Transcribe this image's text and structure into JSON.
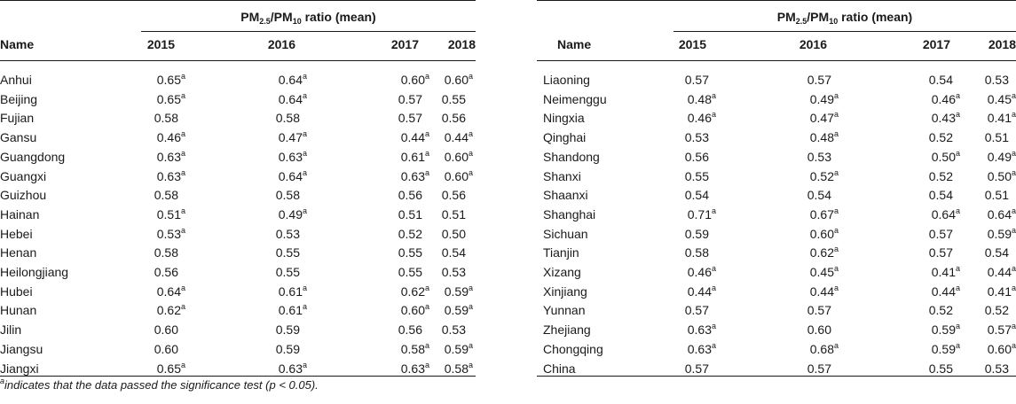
{
  "header_group": "PM2.5/PM10 ratio (mean)",
  "header_parts": {
    "pm25": "PM",
    "sub25": "2.5",
    "slash": "/",
    "pm10": "PM",
    "sub10": "10",
    "rest": " ratio (mean)"
  },
  "columns": [
    "Name",
    "2015",
    "2016",
    "2017",
    "2018"
  ],
  "significance_mark": "a",
  "left_rows": [
    {
      "name": "Anhui",
      "values": [
        "0.65",
        "0.64",
        "0.60",
        "0.60"
      ],
      "sig": [
        true,
        true,
        true,
        true
      ]
    },
    {
      "name": "Beijing",
      "values": [
        "0.65",
        "0.64",
        "0.57",
        "0.55"
      ],
      "sig": [
        true,
        true,
        false,
        false
      ]
    },
    {
      "name": "Fujian",
      "values": [
        "0.58",
        "0.58",
        "0.57",
        "0.56"
      ],
      "sig": [
        false,
        false,
        false,
        false
      ]
    },
    {
      "name": "Gansu",
      "values": [
        "0.46",
        "0.47",
        "0.44",
        "0.44"
      ],
      "sig": [
        true,
        true,
        true,
        true
      ]
    },
    {
      "name": "Guangdong",
      "values": [
        "0.63",
        "0.63",
        "0.61",
        "0.60"
      ],
      "sig": [
        true,
        true,
        true,
        true
      ]
    },
    {
      "name": "Guangxi",
      "values": [
        "0.63",
        "0.64",
        "0.63",
        "0.60"
      ],
      "sig": [
        true,
        true,
        true,
        true
      ]
    },
    {
      "name": "Guizhou",
      "values": [
        "0.58",
        "0.58",
        "0.56",
        "0.56"
      ],
      "sig": [
        false,
        false,
        false,
        false
      ]
    },
    {
      "name": "Hainan",
      "values": [
        "0.51",
        "0.49",
        "0.51",
        "0.51"
      ],
      "sig": [
        true,
        true,
        false,
        false
      ]
    },
    {
      "name": "Hebei",
      "values": [
        "0.53",
        "0.53",
        "0.52",
        "0.50"
      ],
      "sig": [
        true,
        false,
        false,
        false
      ]
    },
    {
      "name": "Henan",
      "values": [
        "0.58",
        "0.55",
        "0.55",
        "0.54"
      ],
      "sig": [
        false,
        false,
        false,
        false
      ]
    },
    {
      "name": "Heilongjiang",
      "values": [
        "0.56",
        "0.55",
        "0.55",
        "0.53"
      ],
      "sig": [
        false,
        false,
        false,
        false
      ]
    },
    {
      "name": "Hubei",
      "values": [
        "0.64",
        "0.61",
        "0.62",
        "0.59"
      ],
      "sig": [
        true,
        true,
        true,
        true
      ]
    },
    {
      "name": "Hunan",
      "values": [
        "0.62",
        "0.61",
        "0.60",
        "0.59"
      ],
      "sig": [
        true,
        true,
        true,
        true
      ]
    },
    {
      "name": "Jilin",
      "values": [
        "0.60",
        "0.59",
        "0.56",
        "0.53"
      ],
      "sig": [
        false,
        false,
        false,
        false
      ]
    },
    {
      "name": "Jiangsu",
      "values": [
        "0.60",
        "0.59",
        "0.58",
        "0.59"
      ],
      "sig": [
        false,
        false,
        true,
        true
      ]
    },
    {
      "name": "Jiangxi",
      "values": [
        "0.65",
        "0.63",
        "0.63",
        "0.58"
      ],
      "sig": [
        true,
        true,
        true,
        true
      ]
    }
  ],
  "right_rows": [
    {
      "name": "Liaoning",
      "values": [
        "0.57",
        "0.57",
        "0.54",
        "0.53"
      ],
      "sig": [
        false,
        false,
        false,
        false
      ]
    },
    {
      "name": "Neimenggu",
      "values": [
        "0.48",
        "0.49",
        "0.46",
        "0.45"
      ],
      "sig": [
        true,
        true,
        true,
        true
      ]
    },
    {
      "name": "Ningxia",
      "values": [
        "0.46",
        "0.47",
        "0.43",
        "0.41"
      ],
      "sig": [
        true,
        true,
        true,
        true
      ]
    },
    {
      "name": "Qinghai",
      "values": [
        "0.53",
        "0.48",
        "0.52",
        "0.51"
      ],
      "sig": [
        false,
        true,
        false,
        false
      ]
    },
    {
      "name": "Shandong",
      "values": [
        "0.56",
        "0.53",
        "0.50",
        "0.49"
      ],
      "sig": [
        false,
        false,
        true,
        true
      ]
    },
    {
      "name": "Shanxi",
      "values": [
        "0.55",
        "0.52",
        "0.52",
        "0.50"
      ],
      "sig": [
        false,
        true,
        false,
        true
      ]
    },
    {
      "name": "Shaanxi",
      "values": [
        "0.54",
        "0.54",
        "0.54",
        "0.51"
      ],
      "sig": [
        false,
        false,
        false,
        false
      ]
    },
    {
      "name": "Shanghai",
      "values": [
        "0.71",
        "0.67",
        "0.64",
        "0.64"
      ],
      "sig": [
        true,
        true,
        true,
        true
      ]
    },
    {
      "name": "Sichuan",
      "values": [
        "0.59",
        "0.60",
        "0.57",
        "0.59"
      ],
      "sig": [
        false,
        true,
        false,
        true
      ]
    },
    {
      "name": "Tianjin",
      "values": [
        "0.58",
        "0.62",
        "0.57",
        "0.54"
      ],
      "sig": [
        false,
        true,
        false,
        false
      ]
    },
    {
      "name": "Xizang",
      "values": [
        "0.46",
        "0.45",
        "0.41",
        "0.44"
      ],
      "sig": [
        true,
        true,
        true,
        true
      ]
    },
    {
      "name": "Xinjiang",
      "values": [
        "0.44",
        "0.44",
        "0.44",
        "0.41"
      ],
      "sig": [
        true,
        true,
        true,
        true
      ]
    },
    {
      "name": "Yunnan",
      "values": [
        "0.57",
        "0.57",
        "0.52",
        "0.52"
      ],
      "sig": [
        false,
        false,
        false,
        false
      ]
    },
    {
      "name": "Zhejiang",
      "values": [
        "0.63",
        "0.60",
        "0.59",
        "0.57"
      ],
      "sig": [
        true,
        false,
        true,
        true
      ]
    },
    {
      "name": "Chongqing",
      "values": [
        "0.63",
        "0.68",
        "0.59",
        "0.60"
      ],
      "sig": [
        true,
        true,
        true,
        true
      ]
    },
    {
      "name": "China",
      "values": [
        "0.57",
        "0.57",
        "0.55",
        "0.53"
      ],
      "sig": [
        false,
        false,
        false,
        false
      ]
    }
  ],
  "footnote": {
    "mark": "a",
    "text": "indicates that the data passed the significance test (p < 0.05)."
  }
}
